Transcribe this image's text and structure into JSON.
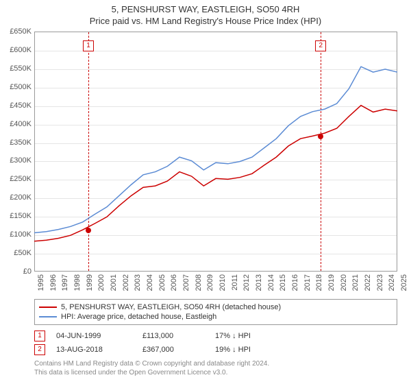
{
  "header": {
    "title": "5, PENSHURST WAY, EASTLEIGH, SO50 4RH",
    "subtitle": "Price paid vs. HM Land Registry's House Price Index (HPI)"
  },
  "chart": {
    "type": "line",
    "background_color": "#ffffff",
    "grid_color": "#e5e5e5",
    "border_color": "#999999",
    "label_fontsize": 11,
    "title_fontsize": 13,
    "ylim": [
      0,
      650000
    ],
    "ytick_step": 50000,
    "yticks": [
      "£0",
      "£50K",
      "£100K",
      "£150K",
      "£200K",
      "£250K",
      "£300K",
      "£350K",
      "£400K",
      "£450K",
      "£500K",
      "£550K",
      "£600K",
      "£650K"
    ],
    "xlim": [
      1995,
      2025
    ],
    "xtick_step": 1,
    "xticks": [
      "1995",
      "1996",
      "1997",
      "1998",
      "1999",
      "2000",
      "2001",
      "2002",
      "2003",
      "2004",
      "2005",
      "2006",
      "2007",
      "2008",
      "2009",
      "2010",
      "2011",
      "2012",
      "2013",
      "2014",
      "2015",
      "2016",
      "2017",
      "2018",
      "2019",
      "2020",
      "2021",
      "2022",
      "2023",
      "2024",
      "2025"
    ],
    "series": [
      {
        "name": "hpi",
        "label": "HPI: Average price, detached house, Eastleigh",
        "color": "#5b8bd4",
        "line_width": 1.5,
        "points": [
          [
            1995,
            105000
          ],
          [
            1996,
            108000
          ],
          [
            1997,
            114000
          ],
          [
            1998,
            122000
          ],
          [
            1999,
            134000
          ],
          [
            2000,
            155000
          ],
          [
            2001,
            175000
          ],
          [
            2002,
            205000
          ],
          [
            2003,
            235000
          ],
          [
            2004,
            262000
          ],
          [
            2005,
            270000
          ],
          [
            2006,
            285000
          ],
          [
            2007,
            310000
          ],
          [
            2008,
            300000
          ],
          [
            2009,
            275000
          ],
          [
            2010,
            295000
          ],
          [
            2011,
            292000
          ],
          [
            2012,
            298000
          ],
          [
            2013,
            310000
          ],
          [
            2014,
            335000
          ],
          [
            2015,
            360000
          ],
          [
            2016,
            395000
          ],
          [
            2017,
            420000
          ],
          [
            2018,
            433000
          ],
          [
            2019,
            440000
          ],
          [
            2020,
            455000
          ],
          [
            2021,
            495000
          ],
          [
            2022,
            555000
          ],
          [
            2023,
            540000
          ],
          [
            2024,
            548000
          ],
          [
            2025,
            540000
          ]
        ]
      },
      {
        "name": "price_paid",
        "label": "5, PENSHURST WAY, EASTLEIGH, SO50 4RH (detached house)",
        "color": "#cc0000",
        "line_width": 1.5,
        "points": [
          [
            1995,
            82000
          ],
          [
            1996,
            85000
          ],
          [
            1997,
            90000
          ],
          [
            1998,
            98000
          ],
          [
            1999,
            113000
          ],
          [
            2000,
            130000
          ],
          [
            2001,
            148000
          ],
          [
            2002,
            178000
          ],
          [
            2003,
            205000
          ],
          [
            2004,
            228000
          ],
          [
            2005,
            232000
          ],
          [
            2006,
            245000
          ],
          [
            2007,
            270000
          ],
          [
            2008,
            258000
          ],
          [
            2009,
            232000
          ],
          [
            2010,
            252000
          ],
          [
            2011,
            250000
          ],
          [
            2012,
            255000
          ],
          [
            2013,
            265000
          ],
          [
            2014,
            288000
          ],
          [
            2015,
            310000
          ],
          [
            2016,
            340000
          ],
          [
            2017,
            360000
          ],
          [
            2018,
            367000
          ],
          [
            2019,
            375000
          ],
          [
            2020,
            388000
          ],
          [
            2021,
            420000
          ],
          [
            2022,
            450000
          ],
          [
            2023,
            432000
          ],
          [
            2024,
            440000
          ],
          [
            2025,
            435000
          ]
        ]
      }
    ],
    "sale_markers": [
      {
        "num": "1",
        "year": 1999.42,
        "price": 113000,
        "box_top": 12
      },
      {
        "num": "2",
        "year": 2018.62,
        "price": 367000,
        "box_top": 12
      }
    ],
    "marker_line_color": "#cc0000",
    "marker_box_border": "#cc0000",
    "marker_box_text": "#cc0000",
    "point_dot_color": "#cc0000"
  },
  "legend": {
    "items": [
      {
        "color": "#cc0000",
        "label": "5, PENSHURST WAY, EASTLEIGH, SO50 4RH (detached house)"
      },
      {
        "color": "#5b8bd4",
        "label": "HPI: Average price, detached house, Eastleigh"
      }
    ]
  },
  "sales_table": {
    "rows": [
      {
        "num": "1",
        "date": "04-JUN-1999",
        "price": "£113,000",
        "diff": "17% ↓ HPI"
      },
      {
        "num": "2",
        "date": "13-AUG-2018",
        "price": "£367,000",
        "diff": "19% ↓ HPI"
      }
    ]
  },
  "attribution": {
    "line1": "Contains HM Land Registry data © Crown copyright and database right 2024.",
    "line2": "This data is licensed under the Open Government Licence v3.0."
  }
}
